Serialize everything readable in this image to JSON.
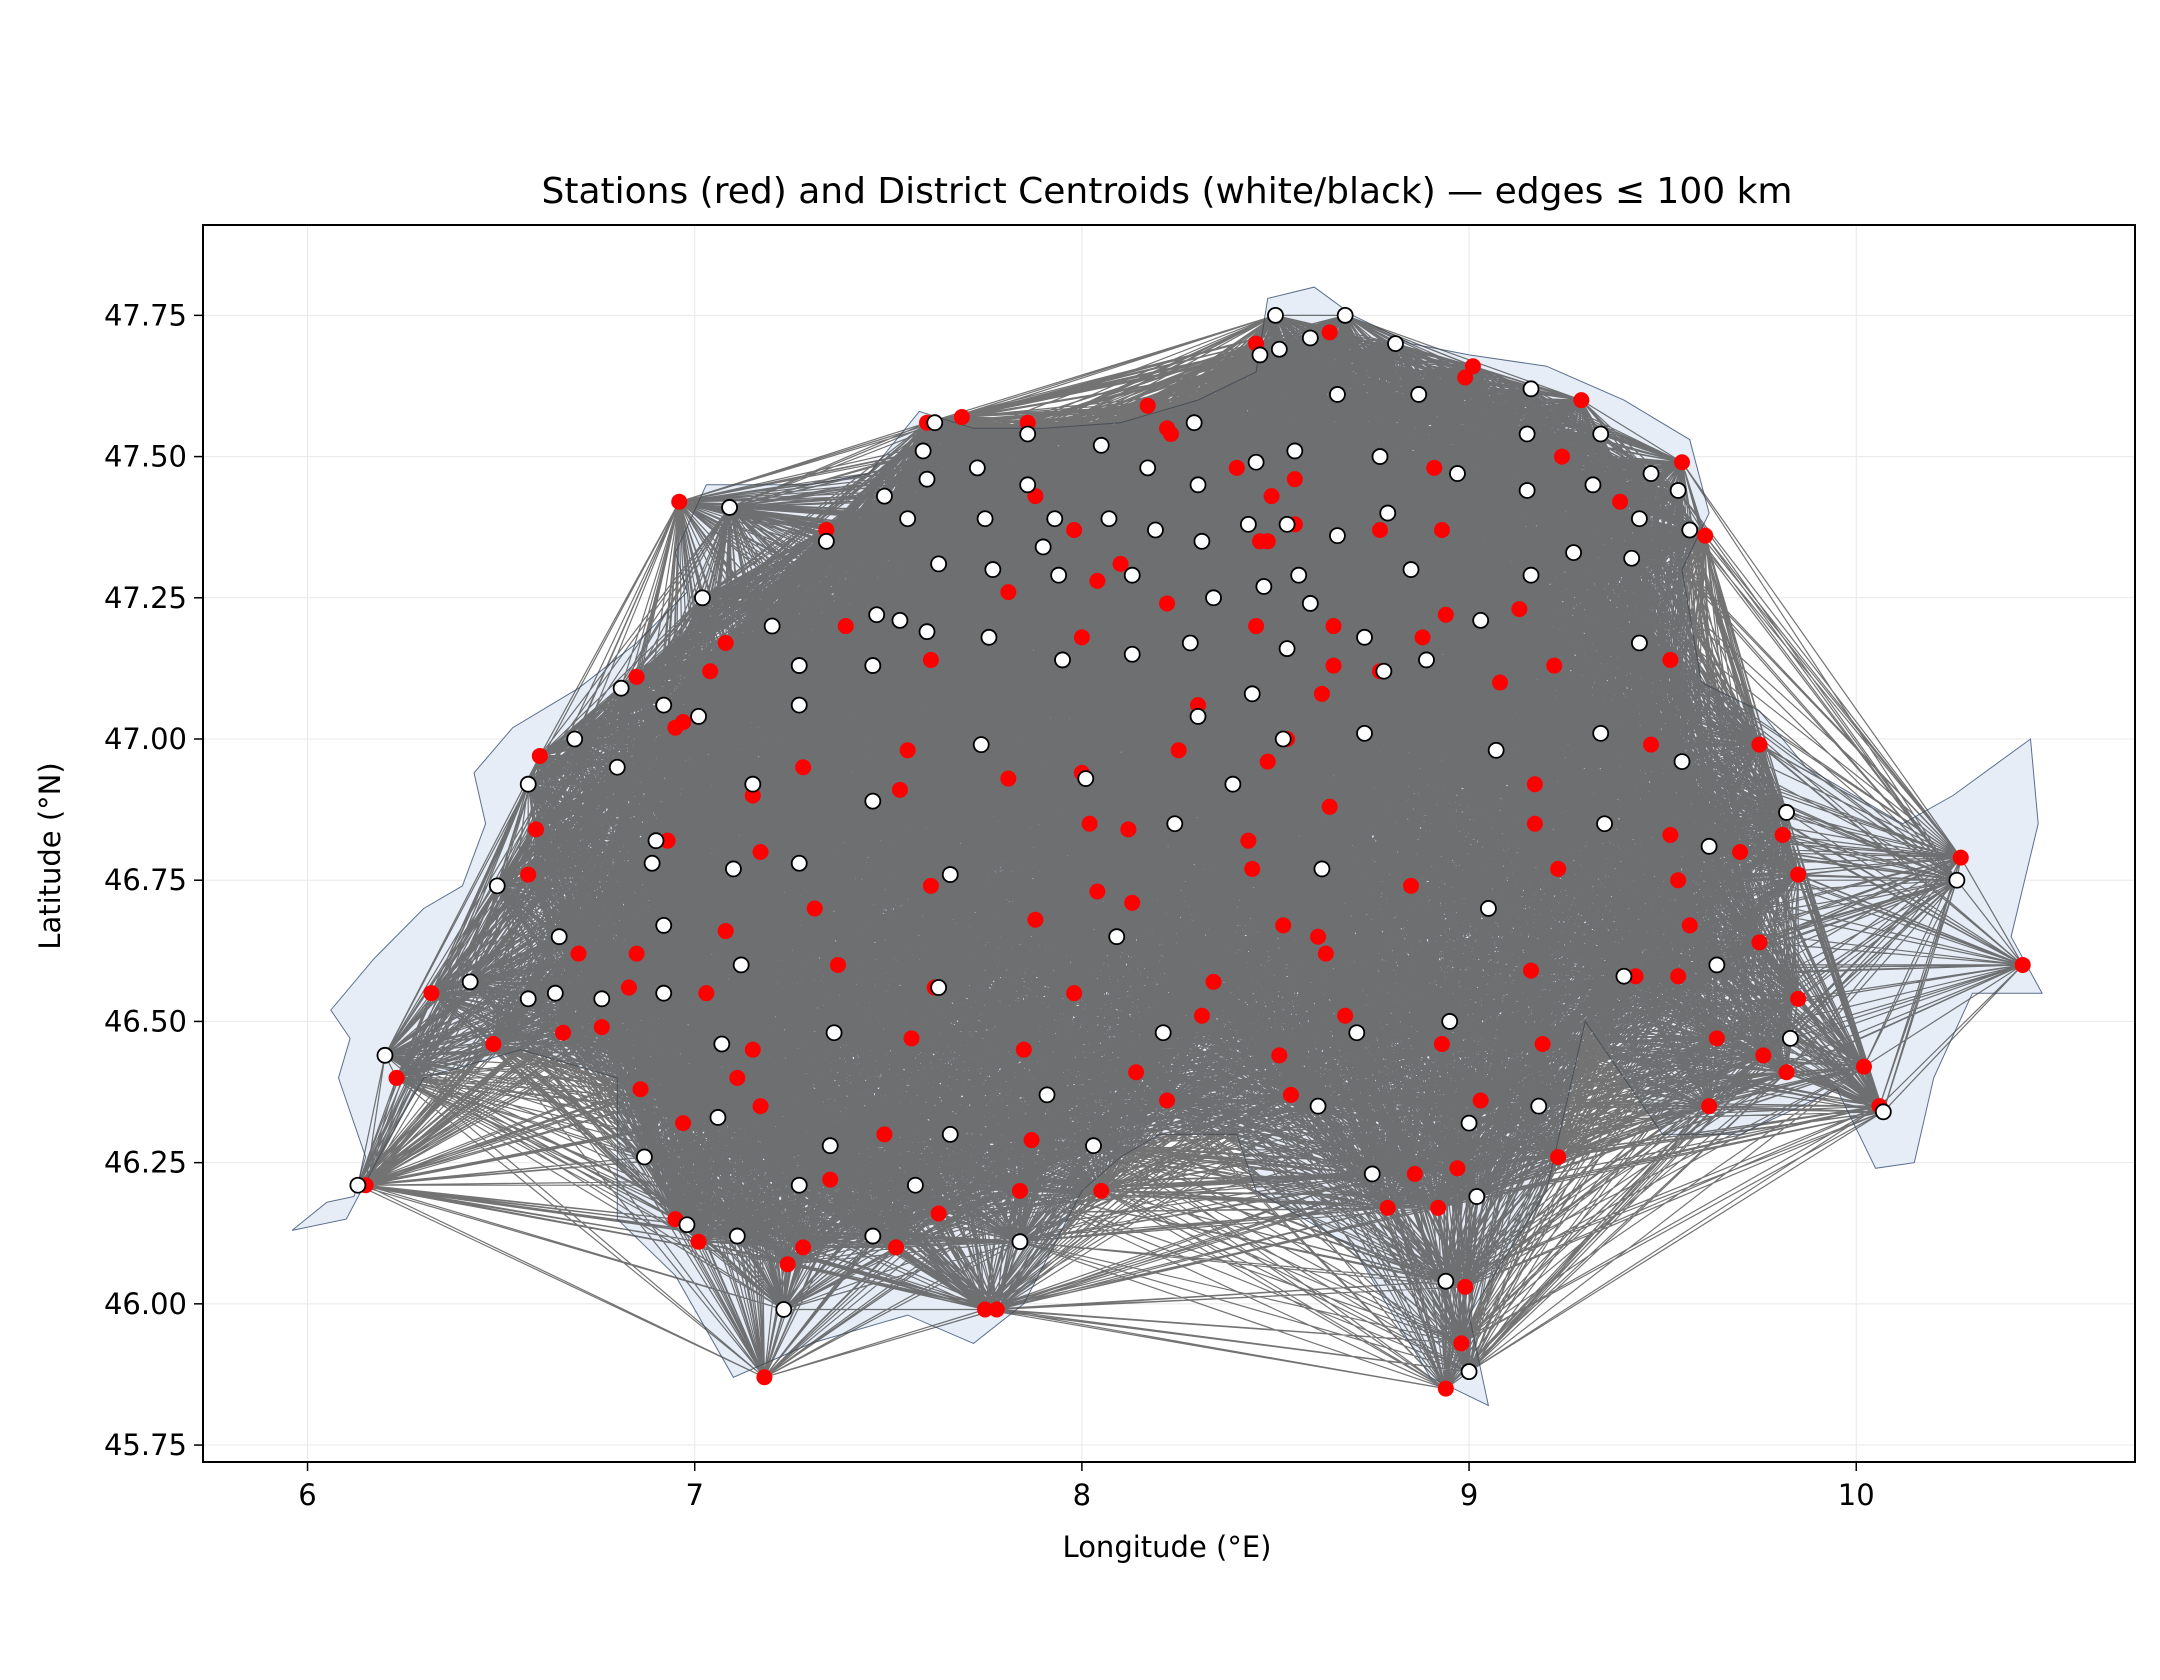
{
  "chart_data": {
    "type": "scatter",
    "title": "Stations (red) and District Centroids (white/black) — edges ≤ 100 km",
    "xlabel": "Longitude (°E)",
    "ylabel": "Latitude (°N)",
    "xlim": [
      5.73,
      10.72
    ],
    "ylim": [
      45.72,
      47.91
    ],
    "xticks": [
      6,
      7,
      8,
      9,
      10
    ],
    "xtick_labels": [
      "6",
      "7",
      "8",
      "9",
      "10"
    ],
    "yticks": [
      45.75,
      46.0,
      46.25,
      46.5,
      46.75,
      47.0,
      47.25,
      47.5,
      47.75
    ],
    "ytick_labels": [
      "45.75",
      "46.00",
      "46.25",
      "46.50",
      "46.75",
      "47.00",
      "47.25",
      "47.50",
      "47.75"
    ],
    "grid": true,
    "colors": {
      "station": "#ff0000",
      "centroid_fill": "#ffffff",
      "centroid_edge": "#000000",
      "edge": "#444444",
      "region_fill": "#e6edf6",
      "region_edge": "#5a6f8c"
    },
    "edge_max_km": 100,
    "region_outline": [
      [
        5.96,
        46.13
      ],
      [
        6.05,
        46.18
      ],
      [
        6.12,
        46.19
      ],
      [
        6.15,
        46.26
      ],
      [
        6.12,
        46.32
      ],
      [
        6.08,
        46.4
      ],
      [
        6.11,
        46.47
      ],
      [
        6.06,
        46.52
      ],
      [
        6.17,
        46.61
      ],
      [
        6.3,
        46.7
      ],
      [
        6.4,
        46.74
      ],
      [
        6.46,
        46.85
      ],
      [
        6.43,
        46.94
      ],
      [
        6.53,
        47.02
      ],
      [
        6.7,
        47.09
      ],
      [
        6.85,
        47.17
      ],
      [
        6.98,
        47.26
      ],
      [
        6.95,
        47.33
      ],
      [
        7.03,
        47.45
      ],
      [
        7.17,
        47.45
      ],
      [
        7.3,
        47.45
      ],
      [
        7.45,
        47.47
      ],
      [
        7.58,
        47.58
      ],
      [
        7.72,
        47.55
      ],
      [
        7.9,
        47.55
      ],
      [
        8.1,
        47.56
      ],
      [
        8.3,
        47.6
      ],
      [
        8.45,
        47.65
      ],
      [
        8.48,
        47.78
      ],
      [
        8.6,
        47.8
      ],
      [
        8.7,
        47.75
      ],
      [
        8.85,
        47.7
      ],
      [
        9.0,
        47.68
      ],
      [
        9.2,
        47.66
      ],
      [
        9.4,
        47.6
      ],
      [
        9.57,
        47.53
      ],
      [
        9.62,
        47.4
      ],
      [
        9.55,
        47.3
      ],
      [
        9.6,
        47.1
      ],
      [
        9.75,
        47.05
      ],
      [
        9.87,
        46.95
      ],
      [
        10.12,
        46.85
      ],
      [
        10.25,
        46.9
      ],
      [
        10.45,
        47.0
      ],
      [
        10.47,
        46.85
      ],
      [
        10.4,
        46.65
      ],
      [
        10.48,
        46.55
      ],
      [
        10.3,
        46.55
      ],
      [
        10.2,
        46.4
      ],
      [
        10.15,
        46.25
      ],
      [
        10.05,
        46.24
      ],
      [
        9.95,
        46.38
      ],
      [
        9.7,
        46.3
      ],
      [
        9.5,
        46.3
      ],
      [
        9.3,
        46.5
      ],
      [
        9.2,
        46.2
      ],
      [
        9.0,
        45.98
      ],
      [
        9.05,
        45.82
      ],
      [
        8.9,
        45.87
      ],
      [
        8.7,
        46.1
      ],
      [
        8.45,
        46.2
      ],
      [
        8.4,
        46.3
      ],
      [
        8.2,
        46.3
      ],
      [
        8.1,
        46.26
      ],
      [
        8.0,
        46.2
      ],
      [
        7.85,
        46.0
      ],
      [
        7.72,
        45.93
      ],
      [
        7.55,
        45.98
      ],
      [
        7.3,
        45.93
      ],
      [
        7.1,
        45.87
      ],
      [
        6.95,
        46.05
      ],
      [
        6.8,
        46.15
      ],
      [
        6.8,
        46.4
      ],
      [
        6.55,
        46.45
      ],
      [
        6.3,
        46.4
      ],
      [
        6.2,
        46.28
      ],
      [
        6.1,
        46.15
      ],
      [
        5.96,
        46.13
      ]
    ],
    "stations": [
      [
        6.13,
        46.21
      ],
      [
        6.15,
        46.21
      ],
      [
        6.23,
        46.4
      ],
      [
        6.32,
        46.55
      ],
      [
        6.48,
        46.46
      ],
      [
        6.57,
        46.76
      ],
      [
        6.59,
        46.84
      ],
      [
        6.6,
        46.97
      ],
      [
        6.66,
        46.48
      ],
      [
        6.7,
        46.62
      ],
      [
        6.76,
        46.49
      ],
      [
        6.83,
        46.56
      ],
      [
        6.85,
        46.62
      ],
      [
        6.85,
        47.11
      ],
      [
        6.86,
        46.38
      ],
      [
        6.93,
        46.82
      ],
      [
        6.95,
        47.02
      ],
      [
        6.97,
        47.03
      ],
      [
        6.97,
        46.32
      ],
      [
        6.95,
        46.15
      ],
      [
        7.01,
        46.11
      ],
      [
        7.03,
        46.55
      ],
      [
        7.04,
        47.12
      ],
      [
        7.08,
        47.17
      ],
      [
        7.08,
        46.66
      ],
      [
        7.11,
        46.4
      ],
      [
        7.15,
        46.9
      ],
      [
        7.15,
        46.45
      ],
      [
        7.17,
        46.8
      ],
      [
        7.17,
        46.35
      ],
      [
        6.96,
        47.42
      ],
      [
        7.18,
        45.87
      ],
      [
        7.24,
        46.07
      ],
      [
        7.28,
        46.1
      ],
      [
        7.28,
        46.95
      ],
      [
        7.31,
        46.7
      ],
      [
        7.34,
        47.37
      ],
      [
        7.35,
        46.22
      ],
      [
        7.37,
        46.6
      ],
      [
        7.39,
        47.2
      ],
      [
        7.49,
        46.3
      ],
      [
        7.52,
        46.1
      ],
      [
        7.53,
        46.91
      ],
      [
        7.55,
        46.98
      ],
      [
        7.56,
        46.47
      ],
      [
        7.6,
        47.56
      ],
      [
        7.61,
        47.14
      ],
      [
        7.61,
        46.74
      ],
      [
        7.62,
        46.56
      ],
      [
        7.63,
        46.16
      ],
      [
        7.69,
        47.57
      ],
      [
        7.75,
        45.99
      ],
      [
        7.78,
        45.99
      ],
      [
        7.81,
        47.26
      ],
      [
        7.81,
        46.93
      ],
      [
        7.84,
        46.2
      ],
      [
        7.85,
        46.45
      ],
      [
        7.86,
        47.56
      ],
      [
        7.87,
        46.29
      ],
      [
        7.88,
        47.43
      ],
      [
        7.88,
        46.68
      ],
      [
        7.98,
        47.37
      ],
      [
        7.98,
        46.55
      ],
      [
        8.0,
        47.18
      ],
      [
        8.0,
        46.94
      ],
      [
        8.02,
        46.85
      ],
      [
        8.04,
        47.28
      ],
      [
        8.04,
        46.73
      ],
      [
        8.05,
        46.2
      ],
      [
        8.1,
        47.31
      ],
      [
        8.12,
        46.84
      ],
      [
        8.13,
        46.71
      ],
      [
        8.14,
        46.41
      ],
      [
        8.17,
        47.59
      ],
      [
        8.22,
        47.55
      ],
      [
        8.23,
        47.54
      ],
      [
        8.22,
        47.24
      ],
      [
        8.22,
        46.36
      ],
      [
        8.25,
        46.98
      ],
      [
        8.3,
        47.06
      ],
      [
        8.31,
        46.51
      ],
      [
        8.34,
        46.57
      ],
      [
        8.4,
        47.48
      ],
      [
        8.43,
        46.82
      ],
      [
        8.44,
        46.77
      ],
      [
        8.45,
        47.7
      ],
      [
        8.45,
        47.2
      ],
      [
        8.46,
        47.35
      ],
      [
        8.48,
        47.35
      ],
      [
        8.48,
        46.96
      ],
      [
        8.49,
        47.43
      ],
      [
        8.51,
        46.44
      ],
      [
        8.52,
        46.67
      ],
      [
        8.53,
        47.0
      ],
      [
        8.54,
        46.37
      ],
      [
        8.55,
        47.38
      ],
      [
        8.55,
        47.46
      ],
      [
        8.61,
        46.65
      ],
      [
        8.62,
        47.08
      ],
      [
        8.63,
        46.62
      ],
      [
        8.64,
        47.72
      ],
      [
        8.64,
        46.88
      ],
      [
        8.65,
        47.2
      ],
      [
        8.65,
        47.13
      ],
      [
        8.68,
        46.51
      ],
      [
        8.77,
        47.37
      ],
      [
        8.77,
        47.12
      ],
      [
        8.79,
        46.17
      ],
      [
        8.85,
        46.74
      ],
      [
        8.86,
        46.23
      ],
      [
        8.88,
        47.18
      ],
      [
        8.91,
        47.48
      ],
      [
        8.92,
        46.17
      ],
      [
        8.93,
        46.46
      ],
      [
        8.93,
        47.37
      ],
      [
        8.94,
        47.22
      ],
      [
        8.94,
        45.85
      ],
      [
        8.97,
        46.24
      ],
      [
        8.98,
        45.93
      ],
      [
        8.99,
        47.64
      ],
      [
        8.99,
        46.03
      ],
      [
        9.01,
        47.66
      ],
      [
        9.03,
        46.36
      ],
      [
        9.08,
        47.1
      ],
      [
        9.13,
        47.23
      ],
      [
        9.16,
        46.59
      ],
      [
        9.17,
        46.92
      ],
      [
        9.17,
        46.85
      ],
      [
        9.19,
        46.46
      ],
      [
        9.22,
        47.13
      ],
      [
        9.23,
        46.77
      ],
      [
        9.23,
        46.26
      ],
      [
        9.24,
        47.5
      ],
      [
        9.29,
        47.6
      ],
      [
        9.39,
        47.42
      ],
      [
        9.43,
        46.58
      ],
      [
        9.47,
        46.99
      ],
      [
        9.52,
        47.14
      ],
      [
        9.52,
        46.83
      ],
      [
        9.54,
        46.75
      ],
      [
        9.54,
        46.58
      ],
      [
        9.55,
        47.49
      ],
      [
        9.57,
        46.67
      ],
      [
        9.61,
        47.36
      ],
      [
        9.62,
        46.35
      ],
      [
        9.64,
        46.47
      ],
      [
        9.7,
        46.8
      ],
      [
        9.75,
        46.99
      ],
      [
        9.75,
        46.64
      ],
      [
        9.76,
        46.44
      ],
      [
        9.81,
        46.83
      ],
      [
        9.82,
        46.41
      ],
      [
        9.85,
        46.76
      ],
      [
        9.85,
        46.54
      ],
      [
        10.02,
        46.42
      ],
      [
        10.06,
        46.35
      ],
      [
        10.27,
        46.79
      ],
      [
        10.43,
        46.6
      ]
    ],
    "centroids": [
      [
        6.13,
        46.21
      ],
      [
        6.2,
        46.44
      ],
      [
        6.42,
        46.57
      ],
      [
        6.49,
        46.74
      ],
      [
        6.57,
        46.54
      ],
      [
        6.57,
        46.92
      ],
      [
        6.64,
        46.55
      ],
      [
        6.65,
        46.65
      ],
      [
        6.69,
        47.0
      ],
      [
        6.76,
        46.54
      ],
      [
        6.8,
        46.95
      ],
      [
        6.81,
        47.09
      ],
      [
        6.87,
        46.26
      ],
      [
        6.89,
        46.78
      ],
      [
        6.9,
        46.82
      ],
      [
        6.92,
        46.55
      ],
      [
        6.92,
        46.67
      ],
      [
        6.92,
        47.06
      ],
      [
        6.98,
        46.14
      ],
      [
        7.01,
        47.04
      ],
      [
        7.02,
        47.25
      ],
      [
        7.06,
        46.33
      ],
      [
        7.07,
        46.46
      ],
      [
        7.1,
        46.77
      ],
      [
        7.11,
        46.12
      ],
      [
        7.12,
        46.6
      ],
      [
        7.15,
        46.92
      ],
      [
        7.09,
        47.41
      ],
      [
        7.2,
        47.2
      ],
      [
        7.23,
        45.99
      ],
      [
        7.27,
        46.21
      ],
      [
        7.27,
        46.78
      ],
      [
        7.27,
        47.06
      ],
      [
        7.27,
        47.13
      ],
      [
        7.34,
        47.35
      ],
      [
        7.35,
        46.28
      ],
      [
        7.36,
        46.48
      ],
      [
        7.46,
        46.12
      ],
      [
        7.46,
        46.89
      ],
      [
        7.46,
        47.13
      ],
      [
        7.47,
        47.22
      ],
      [
        7.49,
        47.43
      ],
      [
        7.53,
        47.21
      ],
      [
        7.55,
        47.39
      ],
      [
        7.57,
        46.21
      ],
      [
        7.59,
        47.51
      ],
      [
        7.6,
        47.46
      ],
      [
        7.6,
        47.19
      ],
      [
        7.62,
        47.56
      ],
      [
        7.63,
        46.56
      ],
      [
        7.63,
        47.31
      ],
      [
        7.66,
        46.3
      ],
      [
        7.66,
        46.76
      ],
      [
        7.73,
        47.48
      ],
      [
        7.74,
        46.99
      ],
      [
        7.75,
        47.39
      ],
      [
        7.76,
        47.18
      ],
      [
        7.77,
        47.3
      ],
      [
        7.84,
        46.11
      ],
      [
        7.86,
        47.54
      ],
      [
        7.86,
        47.45
      ],
      [
        7.9,
        47.34
      ],
      [
        7.91,
        46.37
      ],
      [
        7.93,
        47.39
      ],
      [
        7.94,
        47.29
      ],
      [
        7.95,
        47.14
      ],
      [
        8.01,
        46.93
      ],
      [
        8.03,
        46.28
      ],
      [
        8.05,
        47.52
      ],
      [
        8.07,
        47.39
      ],
      [
        8.09,
        46.65
      ],
      [
        8.13,
        47.29
      ],
      [
        8.13,
        47.15
      ],
      [
        8.17,
        47.48
      ],
      [
        8.19,
        47.37
      ],
      [
        8.21,
        46.48
      ],
      [
        8.24,
        46.85
      ],
      [
        8.28,
        47.17
      ],
      [
        8.29,
        47.56
      ],
      [
        8.3,
        47.04
      ],
      [
        8.3,
        47.45
      ],
      [
        8.31,
        47.35
      ],
      [
        8.34,
        47.25
      ],
      [
        8.39,
        46.92
      ],
      [
        8.43,
        47.38
      ],
      [
        8.44,
        47.08
      ],
      [
        8.45,
        47.49
      ],
      [
        8.46,
        47.68
      ],
      [
        8.47,
        47.27
      ],
      [
        8.5,
        47.75
      ],
      [
        8.51,
        47.69
      ],
      [
        8.52,
        47.0
      ],
      [
        8.53,
        47.16
      ],
      [
        8.53,
        47.38
      ],
      [
        8.55,
        47.51
      ],
      [
        8.56,
        47.29
      ],
      [
        8.59,
        47.71
      ],
      [
        8.59,
        47.24
      ],
      [
        8.61,
        46.35
      ],
      [
        8.62,
        46.77
      ],
      [
        8.66,
        47.36
      ],
      [
        8.66,
        47.61
      ],
      [
        8.68,
        47.75
      ],
      [
        8.71,
        46.48
      ],
      [
        8.73,
        47.18
      ],
      [
        8.73,
        47.01
      ],
      [
        8.75,
        46.23
      ],
      [
        8.77,
        47.5
      ],
      [
        8.78,
        47.12
      ],
      [
        8.79,
        47.4
      ],
      [
        8.81,
        47.7
      ],
      [
        8.85,
        47.3
      ],
      [
        8.87,
        47.61
      ],
      [
        8.89,
        47.14
      ],
      [
        8.94,
        46.04
      ],
      [
        8.95,
        46.5
      ],
      [
        8.97,
        47.47
      ],
      [
        9.0,
        45.88
      ],
      [
        9.0,
        46.32
      ],
      [
        9.02,
        46.19
      ],
      [
        9.03,
        47.21
      ],
      [
        9.05,
        46.7
      ],
      [
        9.07,
        46.98
      ],
      [
        9.15,
        47.44
      ],
      [
        9.15,
        47.54
      ],
      [
        9.16,
        47.29
      ],
      [
        9.16,
        47.62
      ],
      [
        9.18,
        46.35
      ],
      [
        9.27,
        47.33
      ],
      [
        9.32,
        47.45
      ],
      [
        9.34,
        47.54
      ],
      [
        9.34,
        47.01
      ],
      [
        9.35,
        46.85
      ],
      [
        9.4,
        46.58
      ],
      [
        9.42,
        47.32
      ],
      [
        9.44,
        47.39
      ],
      [
        9.44,
        47.17
      ],
      [
        9.47,
        47.47
      ],
      [
        9.54,
        47.44
      ],
      [
        9.55,
        46.96
      ],
      [
        9.57,
        47.37
      ],
      [
        9.62,
        46.81
      ],
      [
        9.64,
        46.6
      ],
      [
        9.82,
        46.87
      ],
      [
        9.83,
        46.47
      ],
      [
        10.07,
        46.34
      ],
      [
        10.26,
        46.75
      ]
    ]
  }
}
